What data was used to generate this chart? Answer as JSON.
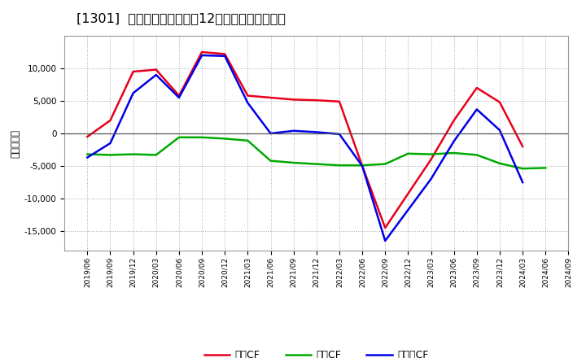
{
  "title": "[1301]  キャッシュフローの12か月移動合計の推移",
  "ylabel": "（百万円）",
  "x_labels": [
    "2019/06",
    "2019/09",
    "2019/12",
    "2020/03",
    "2020/06",
    "2020/09",
    "2020/12",
    "2021/03",
    "2021/06",
    "2021/09",
    "2021/12",
    "2022/03",
    "2022/06",
    "2022/09",
    "2022/12",
    "2023/03",
    "2023/06",
    "2023/09",
    "2023/12",
    "2024/03",
    "2024/06",
    "2024/09"
  ],
  "op_x": [
    0,
    1,
    2,
    3,
    4,
    5,
    6,
    7,
    8,
    9,
    10,
    11,
    12,
    13,
    15,
    16,
    17,
    18,
    19
  ],
  "op_y": [
    -500,
    2000,
    9500,
    9800,
    5800,
    12500,
    12200,
    5800,
    5500,
    5200,
    5100,
    4900,
    -5000,
    -14500,
    -4000,
    2000,
    7000,
    4800,
    -2000
  ],
  "inv_x": [
    0,
    1,
    2,
    3,
    4,
    5,
    6,
    7,
    8,
    9,
    10,
    11,
    12,
    13,
    14,
    15,
    16,
    17,
    18,
    19,
    20
  ],
  "inv_y": [
    -3200,
    -3300,
    -3200,
    -3300,
    -600,
    -600,
    -800,
    -1100,
    -4200,
    -4500,
    -4700,
    -4900,
    -4900,
    -4700,
    -3100,
    -3200,
    -3000,
    -3300,
    -4600,
    -5400,
    -5300
  ],
  "free_x": [
    0,
    1,
    2,
    3,
    4,
    5,
    6,
    7,
    8,
    9,
    10,
    11,
    12,
    13,
    15,
    16,
    17,
    18,
    19
  ],
  "free_y": [
    -3700,
    -1500,
    6200,
    9000,
    5500,
    12000,
    11900,
    4700,
    0,
    400,
    200,
    -100,
    -5000,
    -16500,
    -7000,
    -1200,
    3700,
    500,
    -7500
  ],
  "operating_color": "#e8001c",
  "investing_color": "#00aa00",
  "free_color": "#0000e8",
  "ylim": [
    -18000,
    15000
  ],
  "yticks": [
    -15000,
    -10000,
    -5000,
    0,
    5000,
    10000
  ],
  "background_color": "#ffffff",
  "grid_color": "#aaaaaa",
  "title_fontsize": 11.5,
  "legend_labels": [
    "営業CF",
    "投資CF",
    "フリーCF"
  ]
}
